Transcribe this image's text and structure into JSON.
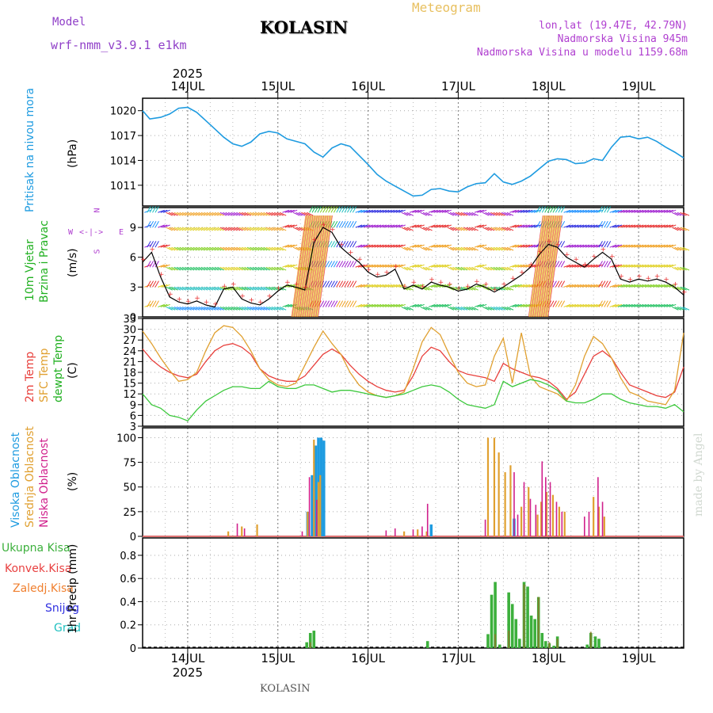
{
  "header": {
    "model_label": "Model",
    "model_name": "wrf-nmm_v3.9.1  e1km",
    "station": "KOLASIN",
    "product": "Meteogram",
    "coords": "lon,lat (19.47E, 42.79N)",
    "elevation": "Nadmorska Visina 945m",
    "model_elevation": "Nadmorska Visina u modelu 1159.68m",
    "footer_station": "KOLASIN",
    "credit": "made by Angel"
  },
  "time_axis": {
    "year": "2025",
    "days": [
      "14JUL",
      "15JUL",
      "16JUL",
      "17JUL",
      "18JUL",
      "19JUL"
    ],
    "range_days": [
      -0.5,
      5.5
    ]
  },
  "colors": {
    "pressure": "#1e9be0",
    "temp2m": "#e8403c",
    "sfc_temp": "#e0a030",
    "dewpoint": "#3cc83c",
    "high_cloud": "#1e9be0",
    "mid_cloud": "#e0a030",
    "low_cloud": "#d0208c",
    "total_precip": "#3cb03c",
    "conv_precip": "#e84040",
    "frozen_precip": "#f08030",
    "snow": "#3030e0",
    "hail": "#20c0c0",
    "wind_speed": "#000000"
  },
  "panels": {
    "pressure": {
      "label": "Pritisak na nivou mora",
      "unit": "(hPa)"
    },
    "wind": {
      "label1": "10m Vjetar",
      "label2": "Brzina i Pravac",
      "unit": "(m/s)",
      "compass_n": "N",
      "compass_w": "W",
      "compass_e": "E",
      "compass_s": "S"
    },
    "temp": {
      "label1": "2m Temp",
      "label2": "SFC Temp",
      "label3": "dewpt Temp",
      "unit": "(C)"
    },
    "cloud": {
      "label1": "Visoka Oblacnost",
      "label2": "Srednja Oblacnost",
      "label3": "Niska Oblacnost",
      "unit": "(%)"
    },
    "precip": {
      "legend": [
        "Ukupna Kisa",
        "Konvek.Kisa",
        "Zaledj.Kisa",
        "Snijeg",
        "Grad"
      ],
      "axis_label": "1hr Precip (mm)"
    }
  },
  "chart_data": [
    {
      "type": "line",
      "name": "pressure",
      "ylabel": "(hPa)",
      "ylim": [
        1008.5,
        1021.5
      ],
      "yticks": [
        1011,
        1014,
        1017,
        1020
      ],
      "x": [
        -0.5,
        -0.42,
        -0.3,
        -0.2,
        -0.1,
        0.0,
        0.1,
        0.2,
        0.3,
        0.4,
        0.5,
        0.6,
        0.7,
        0.8,
        0.9,
        1.0,
        1.1,
        1.2,
        1.3,
        1.4,
        1.5,
        1.6,
        1.7,
        1.8,
        1.9,
        2.0,
        2.1,
        2.2,
        2.3,
        2.4,
        2.5,
        2.6,
        2.7,
        2.8,
        2.9,
        3.0,
        3.1,
        3.2,
        3.3,
        3.4,
        3.5,
        3.6,
        3.7,
        3.8,
        3.9,
        4.0,
        4.1,
        4.2,
        4.3,
        4.4,
        4.5,
        4.6,
        4.7,
        4.8,
        4.9,
        5.0,
        5.1,
        5.2,
        5.3,
        5.4,
        5.5
      ],
      "series": [
        {
          "values": [
            1020.0,
            1019.0,
            1019.2,
            1019.6,
            1020.3,
            1020.4,
            1019.8,
            1018.8,
            1017.8,
            1016.8,
            1016.0,
            1015.7,
            1016.2,
            1017.2,
            1017.5,
            1017.3,
            1016.6,
            1016.3,
            1016.0,
            1015.0,
            1014.4,
            1015.5,
            1016.0,
            1015.7,
            1014.6,
            1013.5,
            1012.3,
            1011.5,
            1010.9,
            1010.3,
            1009.7,
            1009.8,
            1010.5,
            1010.6,
            1010.3,
            1010.2,
            1010.8,
            1011.2,
            1011.3,
            1012.4,
            1011.4,
            1011.1,
            1011.5,
            1012.1,
            1013.0,
            1013.9,
            1014.2,
            1014.1,
            1013.6,
            1013.7,
            1014.2,
            1014.0,
            1015.6,
            1016.8,
            1016.9,
            1016.6,
            1016.8,
            1016.3,
            1015.6,
            1015.0,
            1014.3
          ]
        }
      ]
    },
    {
      "type": "line",
      "name": "wind_speed",
      "ylabel": "(m/s)",
      "ylim": [
        0,
        11
      ],
      "yticks": [
        0,
        3,
        6,
        9
      ],
      "x": [
        -0.5,
        -0.4,
        -0.3,
        -0.2,
        -0.1,
        0.0,
        0.1,
        0.2,
        0.3,
        0.4,
        0.5,
        0.6,
        0.7,
        0.8,
        0.9,
        1.0,
        1.1,
        1.2,
        1.3,
        1.4,
        1.5,
        1.6,
        1.7,
        1.8,
        1.9,
        2.0,
        2.1,
        2.2,
        2.3,
        2.4,
        2.5,
        2.6,
        2.7,
        2.8,
        2.9,
        3.0,
        3.1,
        3.2,
        3.3,
        3.4,
        3.5,
        3.6,
        3.7,
        3.8,
        3.9,
        4.0,
        4.1,
        4.2,
        4.3,
        4.4,
        4.5,
        4.6,
        4.7,
        4.8,
        4.9,
        5.0,
        5.1,
        5.2,
        5.3,
        5.4,
        5.5
      ],
      "series": [
        {
          "values": [
            5.5,
            6.5,
            4.0,
            2.0,
            1.5,
            1.3,
            1.6,
            1.2,
            1.0,
            2.8,
            3.0,
            1.8,
            1.4,
            1.2,
            1.8,
            2.6,
            3.2,
            3.0,
            2.7,
            7.5,
            9.0,
            8.5,
            7.0,
            6.2,
            5.5,
            4.5,
            4.0,
            4.2,
            4.8,
            2.8,
            3.2,
            2.8,
            3.5,
            3.2,
            3.0,
            2.6,
            2.8,
            3.3,
            3.0,
            2.5,
            3.0,
            3.6,
            4.2,
            5.0,
            6.3,
            7.3,
            7.0,
            6.0,
            5.5,
            5.0,
            5.8,
            6.5,
            5.8,
            3.8,
            3.5,
            3.8,
            3.6,
            3.8,
            3.5,
            3.0,
            2.2
          ]
        }
      ]
    },
    {
      "type": "line",
      "name": "temperature",
      "ylabel": "(C)",
      "ylim": [
        3,
        33
      ],
      "yticks": [
        3,
        6,
        9,
        12,
        15,
        18,
        21,
        24,
        27,
        30,
        33
      ],
      "x": [
        -0.5,
        -0.4,
        -0.3,
        -0.2,
        -0.1,
        0.0,
        0.1,
        0.2,
        0.3,
        0.4,
        0.5,
        0.6,
        0.7,
        0.8,
        0.9,
        1.0,
        1.1,
        1.2,
        1.3,
        1.4,
        1.5,
        1.6,
        1.7,
        1.8,
        1.9,
        2.0,
        2.1,
        2.2,
        2.3,
        2.4,
        2.5,
        2.6,
        2.7,
        2.8,
        2.9,
        3.0,
        3.1,
        3.2,
        3.3,
        3.4,
        3.5,
        3.6,
        3.7,
        3.8,
        3.9,
        4.0,
        4.1,
        4.2,
        4.3,
        4.4,
        4.5,
        4.6,
        4.7,
        4.8,
        4.9,
        5.0,
        5.1,
        5.2,
        5.3,
        5.4,
        5.5
      ],
      "series": [
        {
          "name": "2m Temp",
          "values": [
            24.5,
            21.5,
            19.5,
            18.0,
            17.0,
            16.5,
            17.5,
            21.0,
            24.0,
            25.5,
            26.0,
            25.0,
            23.0,
            19.0,
            17.0,
            16.0,
            15.5,
            15.5,
            17.0,
            20.0,
            23.0,
            24.5,
            23.0,
            20.0,
            17.5,
            15.5,
            14.0,
            13.0,
            12.5,
            13.0,
            17.0,
            22.5,
            25.0,
            24.0,
            21.0,
            18.5,
            17.5,
            17.0,
            16.5,
            15.5,
            20.5,
            19.0,
            18.0,
            17.0,
            16.5,
            15.5,
            13.5,
            10.5,
            12.5,
            17.5,
            22.5,
            24.0,
            22.0,
            18.0,
            14.5,
            13.5,
            12.5,
            11.5,
            11.0,
            12.5,
            19.5
          ]
        },
        {
          "name": "SFC Temp",
          "values": [
            29.5,
            26.0,
            22.0,
            18.5,
            15.5,
            16.0,
            18.0,
            24.0,
            29.0,
            31.0,
            30.5,
            28.0,
            24.0,
            19.0,
            16.0,
            14.5,
            14.0,
            15.0,
            20.0,
            25.0,
            29.5,
            26.0,
            23.0,
            18.0,
            14.5,
            12.5,
            11.5,
            11.0,
            11.5,
            12.5,
            19.0,
            26.5,
            30.5,
            28.5,
            23.0,
            18.0,
            15.0,
            14.0,
            14.5,
            22.5,
            27.5,
            15.0,
            29.0,
            17.0,
            14.0,
            13.0,
            12.0,
            10.0,
            14.5,
            22.5,
            28.0,
            26.0,
            22.0,
            16.5,
            12.5,
            11.5,
            10.0,
            9.5,
            9.0,
            13.0,
            29.0
          ]
        },
        {
          "name": "dewpt Temp",
          "values": [
            12.0,
            9.0,
            8.0,
            6.0,
            5.5,
            4.5,
            7.5,
            10.0,
            11.5,
            13.0,
            14.0,
            14.0,
            13.5,
            13.5,
            15.5,
            14.0,
            13.5,
            13.5,
            14.5,
            14.5,
            13.5,
            12.5,
            13.0,
            13.0,
            12.5,
            12.0,
            11.5,
            11.0,
            11.5,
            12.0,
            13.0,
            14.0,
            14.5,
            14.0,
            12.5,
            10.5,
            9.0,
            8.5,
            8.0,
            9.0,
            15.5,
            14.0,
            15.0,
            16.0,
            15.5,
            14.5,
            13.0,
            10.0,
            9.5,
            9.5,
            10.5,
            12.0,
            12.0,
            10.5,
            9.5,
            9.0,
            8.5,
            8.5,
            8.0,
            9.0,
            7.0
          ]
        }
      ]
    },
    {
      "type": "bar",
      "name": "cloud_cover",
      "ylabel": "(%)",
      "ylim": [
        0,
        110
      ],
      "yticks": [
        0,
        25,
        50,
        75,
        100
      ],
      "series": [
        {
          "name": "Visoka Oblacnost",
          "points": [
            [
              1.33,
              25
            ],
            [
              1.38,
              62
            ],
            [
              1.42,
              92
            ],
            [
              1.45,
              100
            ],
            [
              1.48,
              100
            ],
            [
              1.51,
              97
            ],
            [
              2.7,
              12
            ],
            [
              3.62,
              18
            ]
          ]
        },
        {
          "name": "Srednja Oblacnost",
          "points": [
            [
              0.45,
              5
            ],
            [
              0.6,
              10
            ],
            [
              0.77,
              12
            ],
            [
              1.33,
              25
            ],
            [
              1.4,
              98
            ],
            [
              1.45,
              55
            ],
            [
              1.47,
              62
            ],
            [
              2.4,
              5
            ],
            [
              2.55,
              7
            ],
            [
              2.65,
              5
            ],
            [
              3.33,
              100
            ],
            [
              3.4,
              100
            ],
            [
              3.45,
              85
            ],
            [
              3.52,
              65
            ],
            [
              3.58,
              72
            ],
            [
              3.7,
              30
            ],
            [
              3.78,
              50
            ],
            [
              3.88,
              22
            ],
            [
              3.92,
              35
            ],
            [
              3.98,
              45
            ],
            [
              4.05,
              42
            ],
            [
              4.12,
              30
            ],
            [
              4.18,
              25
            ],
            [
              4.5,
              40
            ],
            [
              4.56,
              30
            ],
            [
              4.62,
              20
            ]
          ]
        },
        {
          "name": "Niska Oblacnost",
          "points": [
            [
              0.55,
              13
            ],
            [
              0.63,
              8
            ],
            [
              1.27,
              5
            ],
            [
              1.35,
              60
            ],
            [
              1.43,
              37
            ],
            [
              2.2,
              6
            ],
            [
              2.3,
              8
            ],
            [
              2.5,
              7
            ],
            [
              2.6,
              10
            ],
            [
              2.66,
              33
            ],
            [
              3.3,
              17
            ],
            [
              3.62,
              65
            ],
            [
              3.66,
              22
            ],
            [
              3.73,
              55
            ],
            [
              3.8,
              38
            ],
            [
              3.86,
              32
            ],
            [
              3.93,
              76
            ],
            [
              3.97,
              60
            ],
            [
              4.02,
              55
            ],
            [
              4.09,
              35
            ],
            [
              4.15,
              25
            ],
            [
              4.4,
              20
            ],
            [
              4.45,
              25
            ],
            [
              4.55,
              60
            ],
            [
              4.6,
              35
            ]
          ]
        }
      ]
    },
    {
      "type": "bar",
      "name": "precipitation",
      "ylabel": "1hr Precip (mm)",
      "ylim": [
        0,
        0.95
      ],
      "yticks": [
        0,
        0.2,
        0.4,
        0.6,
        0.8
      ],
      "series": [
        {
          "name": "Ukupna Kisa",
          "points": [
            [
              1.32,
              0.05
            ],
            [
              1.36,
              0.13
            ],
            [
              1.4,
              0.15
            ],
            [
              2.66,
              0.06
            ],
            [
              3.33,
              0.12
            ],
            [
              3.37,
              0.46
            ],
            [
              3.41,
              0.57
            ],
            [
              3.46,
              0.03
            ],
            [
              3.56,
              0.48
            ],
            [
              3.6,
              0.38
            ],
            [
              3.64,
              0.25
            ],
            [
              3.68,
              0.08
            ],
            [
              3.73,
              0.57
            ],
            [
              3.77,
              0.53
            ],
            [
              3.81,
              0.28
            ],
            [
              3.85,
              0.25
            ],
            [
              3.89,
              0.44
            ],
            [
              3.93,
              0.13
            ],
            [
              3.97,
              0.06
            ],
            [
              4.01,
              0.04
            ],
            [
              4.06,
              0.02
            ],
            [
              4.1,
              0.1
            ],
            [
              4.43,
              0.03
            ],
            [
              4.47,
              0.13
            ],
            [
              4.52,
              0.1
            ],
            [
              4.56,
              0.08
            ]
          ]
        },
        {
          "name": "Konvek.Kisa",
          "points": [
            [
              1.36,
              0.05
            ],
            [
              3.41,
              0.12
            ],
            [
              3.56,
              0.15
            ],
            [
              3.73,
              0.55
            ],
            [
              3.89,
              0.44
            ],
            [
              4.01,
              0.05
            ],
            [
              4.1,
              0.08
            ],
            [
              4.47,
              0.14
            ]
          ]
        }
      ]
    }
  ]
}
